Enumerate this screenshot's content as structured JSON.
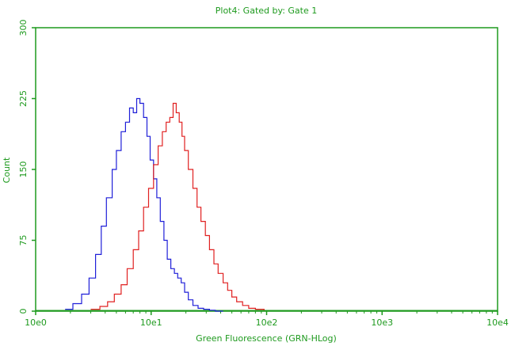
{
  "chart_data": {
    "type": "line",
    "title": "Plot4: Gated by: Gate 1",
    "xlabel": "Green Fluorescence (GRN-HLog)",
    "ylabel": "Count",
    "x_scale": "log",
    "xlim": [
      1,
      10000
    ],
    "ylim": [
      0,
      300
    ],
    "x_ticks": [
      "10e0",
      "10e1",
      "10e2",
      "10e3",
      "10e4"
    ],
    "y_ticks": [
      "0",
      "75",
      "150",
      "225",
      "300"
    ],
    "grid": false,
    "colors": {
      "axes": "#1e9a1e",
      "series_blue": "#1f1fd8",
      "series_red": "#e02020"
    },
    "series": [
      {
        "color": "#1f1fd8",
        "x": [
          1.8,
          2.1,
          2.5,
          2.9,
          3.3,
          3.7,
          4.1,
          4.6,
          5.0,
          5.5,
          6.0,
          6.5,
          7.0,
          7.5,
          8.0,
          8.6,
          9.2,
          9.8,
          10.5,
          11.2,
          12.0,
          12.9,
          13.8,
          14.8,
          15.9,
          17.0,
          18.2,
          19.5,
          21.0,
          23.0,
          25.5,
          28.5,
          32.0,
          36.0,
          42.0
        ],
        "y": [
          2,
          8,
          18,
          35,
          60,
          90,
          120,
          150,
          170,
          190,
          200,
          215,
          210,
          225,
          220,
          205,
          185,
          160,
          140,
          120,
          95,
          75,
          55,
          45,
          40,
          35,
          30,
          20,
          12,
          6,
          3,
          2,
          1,
          0,
          0
        ]
      },
      {
        "color": "#e02020",
        "x": [
          3.0,
          3.6,
          4.2,
          4.8,
          5.5,
          6.2,
          7.0,
          7.8,
          8.6,
          9.5,
          10.5,
          11.5,
          12.5,
          13.5,
          14.5,
          15.5,
          16.5,
          17.5,
          18.5,
          19.5,
          21.0,
          23.0,
          25.0,
          27.0,
          29.5,
          32.0,
          35.0,
          38.0,
          42.0,
          46.0,
          50.0,
          55.0,
          62.0,
          70.0,
          80.0,
          95.0
        ],
        "y": [
          2,
          5,
          10,
          18,
          28,
          45,
          65,
          85,
          110,
          130,
          155,
          175,
          190,
          200,
          205,
          220,
          210,
          200,
          185,
          170,
          150,
          130,
          110,
          95,
          80,
          65,
          50,
          40,
          30,
          22,
          15,
          10,
          6,
          3,
          2,
          1
        ]
      }
    ]
  }
}
